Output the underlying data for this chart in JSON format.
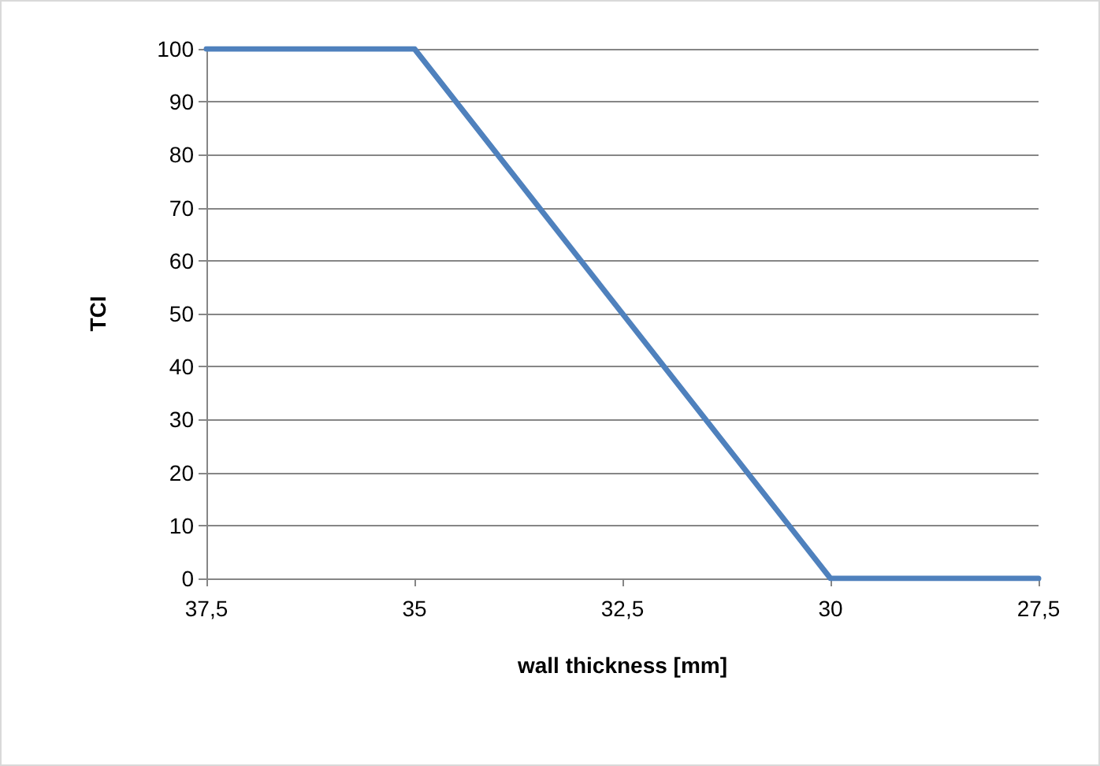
{
  "chart_data": {
    "type": "line",
    "xlabel": "wall thickness [mm]",
    "ylabel": "TCI",
    "x": [
      37.5,
      35,
      30,
      27.5
    ],
    "series": [
      {
        "color": "#4f81bd",
        "values": [
          100,
          100,
          0,
          0
        ]
      }
    ],
    "xlim": [
      37.5,
      27.5
    ],
    "xticks": [
      {
        "value": 37.5,
        "label": "37,5"
      },
      35,
      {
        "value": 32.5,
        "label": "32,5"
      },
      30,
      {
        "value": 27.5,
        "label": "27,5"
      }
    ],
    "ylim": [
      0,
      100
    ],
    "yticks": [
      0,
      10,
      20,
      30,
      40,
      50,
      60,
      70,
      80,
      90,
      100
    ],
    "grid": "y",
    "marker": "none",
    "line_style": "solid"
  }
}
